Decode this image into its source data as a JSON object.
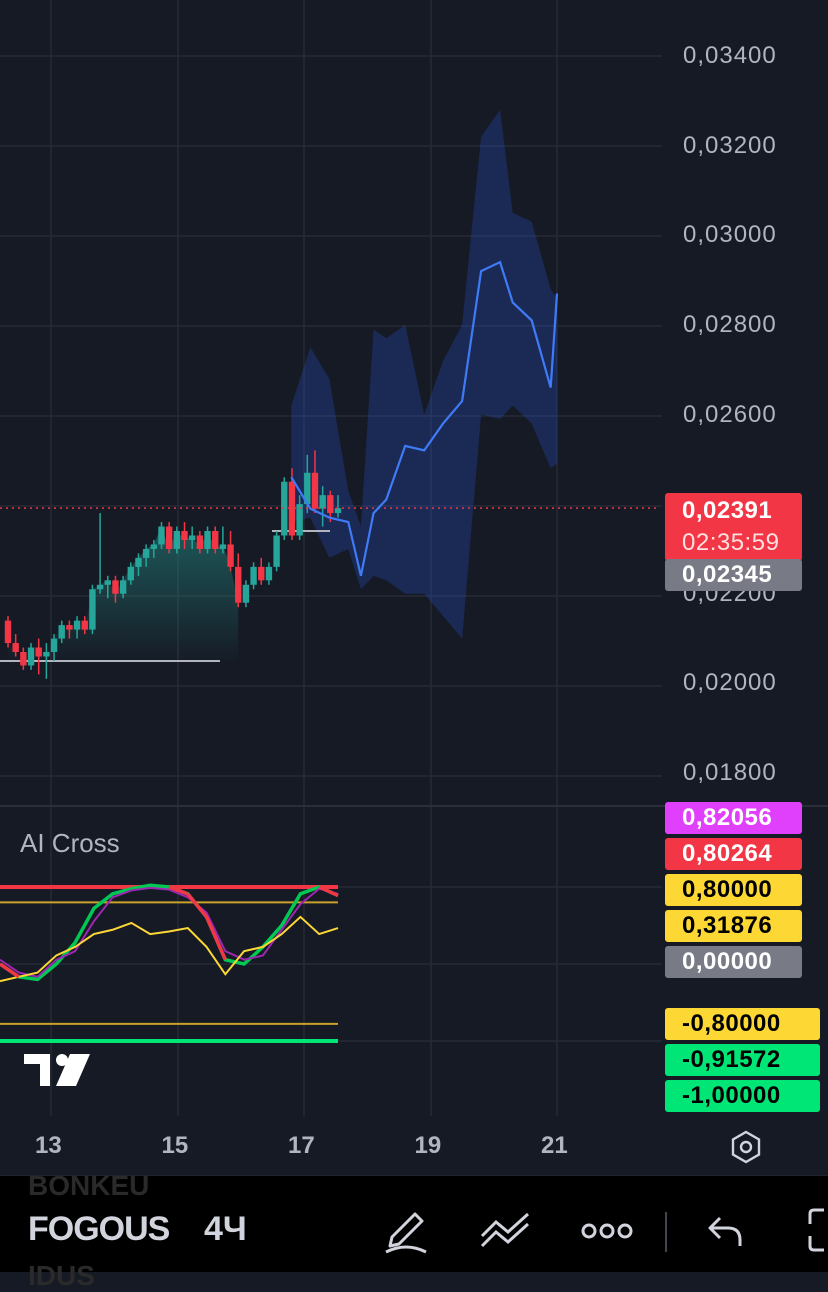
{
  "symbol": "FOGOUS",
  "symbol_ghost_top": "BONKEU",
  "symbol_ghost_bottom": "IDUS",
  "interval": "4Ч",
  "price_axis": [
    "0,03400",
    "0,03200",
    "0,03000",
    "0,02800",
    "0,02600",
    "0,02200",
    "0,02000",
    "0,01800"
  ],
  "last_price": "0,02391",
  "countdown": "02:35:59",
  "secondary_price": "0,02345",
  "indicator": {
    "name": "AI Cross",
    "tags": [
      {
        "text": "0,82056",
        "bg": "#e040fb",
        "fg": "#ffffff"
      },
      {
        "text": "0,80264",
        "bg": "#f23645",
        "fg": "#ffffff"
      },
      {
        "text": "0,80000",
        "bg": "#fdd835",
        "fg": "#000000"
      },
      {
        "text": "0,31876",
        "bg": "#fdd835",
        "fg": "#000000"
      },
      {
        "text": "0,00000",
        "bg": "#787b86",
        "fg": "#ffffff"
      },
      {
        "text": "-0,80000",
        "bg": "#fdd835",
        "fg": "#000000"
      },
      {
        "text": "-0,91572",
        "bg": "#00e676",
        "fg": "#000000"
      },
      {
        "text": "-1,00000",
        "bg": "#00e676",
        "fg": "#000000"
      }
    ]
  },
  "x_axis": [
    "13",
    "15",
    "17",
    "19",
    "21"
  ],
  "colors": {
    "up": "#26a69a",
    "down": "#f23645",
    "forecast": "#2962ff",
    "bg": "#161a25"
  },
  "icons": [
    "settings-hex-icon",
    "pen-icon",
    "trend-lines-icon",
    "more-dots-icon",
    "undo-icon",
    "fullscreen-icon",
    "tradingview-logo-icon"
  ],
  "chart_data": [
    {
      "type": "candlestick",
      "title": "FOGOUS 4Ч",
      "x_ticks": [
        "13",
        "15",
        "17",
        "19",
        "21"
      ],
      "ylim": [
        0.017,
        0.035
      ],
      "y_ticks": [
        0.018,
        0.02,
        0.022,
        0.026,
        0.028,
        0.03,
        0.032,
        0.034
      ],
      "candles_ohlc": [
        [
          0.0214,
          0.0215,
          0.0208,
          0.0209
        ],
        [
          0.0209,
          0.0211,
          0.0206,
          0.0207
        ],
        [
          0.0207,
          0.0208,
          0.0203,
          0.0204
        ],
        [
          0.0204,
          0.0209,
          0.0203,
          0.0208
        ],
        [
          0.0208,
          0.021,
          0.0202,
          0.0206
        ],
        [
          0.0206,
          0.0209,
          0.0201,
          0.0207
        ],
        [
          0.0207,
          0.0211,
          0.0205,
          0.021
        ],
        [
          0.021,
          0.0214,
          0.0209,
          0.0213
        ],
        [
          0.0213,
          0.0214,
          0.021,
          0.0212
        ],
        [
          0.0212,
          0.0215,
          0.021,
          0.0214
        ],
        [
          0.0214,
          0.0215,
          0.0211,
          0.0212
        ],
        [
          0.0212,
          0.0222,
          0.0211,
          0.0221
        ],
        [
          0.0221,
          0.0238,
          0.022,
          0.0222
        ],
        [
          0.0222,
          0.0224,
          0.0219,
          0.0223
        ],
        [
          0.0223,
          0.0224,
          0.0218,
          0.022
        ],
        [
          0.022,
          0.0224,
          0.0219,
          0.0223
        ],
        [
          0.0223,
          0.0227,
          0.0222,
          0.0226
        ],
        [
          0.0226,
          0.0229,
          0.0224,
          0.0228
        ],
        [
          0.0228,
          0.0231,
          0.0226,
          0.023
        ],
        [
          0.023,
          0.0232,
          0.0228,
          0.0231
        ],
        [
          0.0231,
          0.0236,
          0.023,
          0.0235
        ],
        [
          0.0235,
          0.0236,
          0.0229,
          0.023
        ],
        [
          0.023,
          0.0235,
          0.0229,
          0.0234
        ],
        [
          0.0234,
          0.0236,
          0.023,
          0.0232
        ],
        [
          0.0232,
          0.0235,
          0.023,
          0.0233
        ],
        [
          0.0233,
          0.0234,
          0.0229,
          0.023
        ],
        [
          0.023,
          0.0235,
          0.0229,
          0.0234
        ],
        [
          0.0234,
          0.0235,
          0.0229,
          0.023
        ],
        [
          0.023,
          0.0235,
          0.0229,
          0.0231
        ],
        [
          0.0231,
          0.0234,
          0.0225,
          0.0226
        ],
        [
          0.0226,
          0.0229,
          0.0217,
          0.0218
        ],
        [
          0.0218,
          0.0223,
          0.0217,
          0.0222
        ],
        [
          0.0222,
          0.0227,
          0.0221,
          0.0226
        ],
        [
          0.0226,
          0.0228,
          0.0222,
          0.0223
        ],
        [
          0.0223,
          0.0227,
          0.0222,
          0.0226
        ],
        [
          0.0226,
          0.0234,
          0.0225,
          0.0233
        ],
        [
          0.0233,
          0.0246,
          0.0232,
          0.0245
        ],
        [
          0.0245,
          0.0248,
          0.0232,
          0.0233
        ],
        [
          0.0233,
          0.0242,
          0.0232,
          0.024
        ],
        [
          0.024,
          0.0251,
          0.0238,
          0.0247
        ],
        [
          0.0247,
          0.0252,
          0.0238,
          0.0239
        ],
        [
          0.0239,
          0.0244,
          0.0235,
          0.0242
        ],
        [
          0.0242,
          0.0243,
          0.0236,
          0.0238
        ],
        [
          0.0238,
          0.0242,
          0.0237,
          0.02391
        ]
      ],
      "forecast_x": [
        16.8,
        17.1,
        17.4,
        17.7,
        17.9,
        18.1,
        18.3,
        18.6,
        18.9,
        19.2,
        19.5,
        19.8,
        20.1,
        20.3,
        20.6,
        20.9,
        21.0
      ],
      "forecast": [
        0.0246,
        0.0239,
        0.0237,
        0.0236,
        0.0224,
        0.0238,
        0.0241,
        0.0253,
        0.0252,
        0.0258,
        0.0263,
        0.0292,
        0.0294,
        0.0285,
        0.0281,
        0.0266,
        0.0287
      ],
      "forecast_upper": [
        0.0262,
        0.0275,
        0.0268,
        0.0243,
        0.0235,
        0.0279,
        0.0277,
        0.028,
        0.026,
        0.0272,
        0.028,
        0.0322,
        0.0328,
        0.0305,
        0.0303,
        0.0288,
        0.0286
      ],
      "forecast_lower": [
        0.0236,
        0.0237,
        0.0228,
        0.023,
        0.0221,
        0.0224,
        0.0223,
        0.022,
        0.022,
        0.0215,
        0.021,
        0.026,
        0.0259,
        0.0262,
        0.0258,
        0.0248,
        0.0249
      ],
      "last_price_line": 0.02391
    },
    {
      "type": "line",
      "title": "AI Cross",
      "ylim": [
        -1.0,
        0.9
      ],
      "levels": [
        0.8,
        0.8,
        -0.8,
        -1.0
      ],
      "series": [
        {
          "values": [
            -0.1,
            -0.25,
            -0.28,
            -0.1,
            0.15,
            0.55,
            0.72,
            0.78,
            0.82,
            0.8,
            0.72,
            0.45,
            -0.05,
            -0.1,
            0.1,
            0.35,
            0.72,
            0.8,
            0.7
          ]
        },
        {
          "values": [
            -0.05,
            -0.2,
            -0.25,
            -0.05,
            0.05,
            0.4,
            0.68,
            0.76,
            0.79,
            0.77,
            0.68,
            0.5,
            0.05,
            -0.05,
            0.0,
            0.3,
            0.6,
            0.78,
            0.72
          ]
        },
        {
          "values": [
            -0.3,
            -0.25,
            -0.2,
            0.0,
            0.1,
            0.25,
            0.3,
            0.38,
            0.25,
            0.28,
            0.32,
            0.1,
            -0.22,
            0.05,
            0.1,
            0.25,
            0.45,
            0.25,
            0.32
          ]
        }
      ]
    }
  ]
}
